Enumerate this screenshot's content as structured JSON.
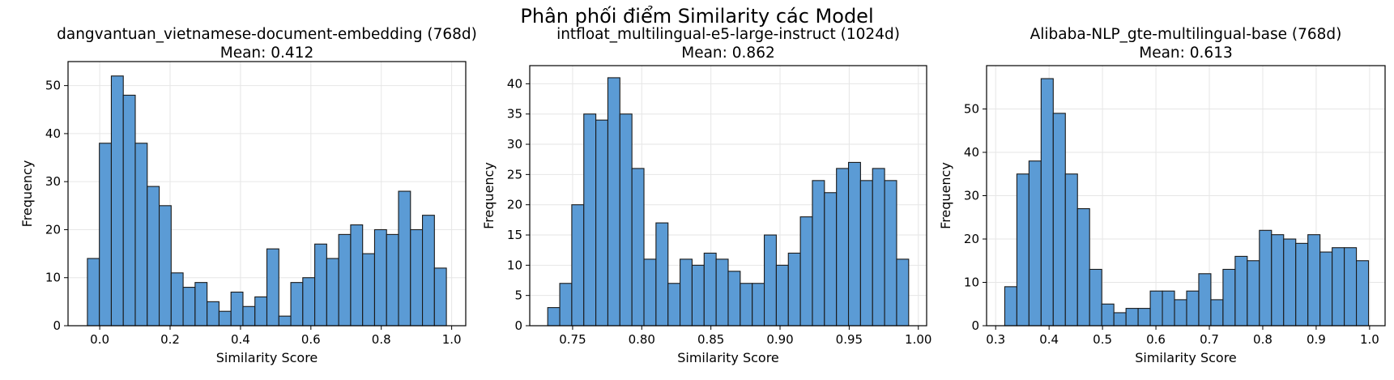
{
  "title": "Phân phối điểm Similarity các Model",
  "colors": {
    "bar_fill": "#5b9bd5",
    "bar_edge": "#1a1a1a",
    "grid": "#e6e6e6",
    "axis": "#000000"
  },
  "chart_data": [
    {
      "type": "bar",
      "title": "dangvantuan_vietnamese-document-embedding (768d)",
      "subtitle": "Mean: 0.412",
      "xlabel": "Similarity Score",
      "ylabel": "Frequency",
      "bin_start": -0.035,
      "bin_width": 0.034,
      "values": [
        14,
        38,
        52,
        48,
        38,
        29,
        25,
        11,
        8,
        9,
        5,
        3,
        7,
        4,
        6,
        16,
        2,
        9,
        10,
        17,
        14,
        19,
        21,
        15,
        20,
        19,
        28,
        20,
        23,
        12
      ],
      "xlim": [
        -0.09,
        1.04
      ],
      "ylim": [
        0,
        55
      ],
      "xticks": [
        0.0,
        0.2,
        0.4,
        0.6,
        0.8,
        1.0
      ],
      "xtick_labels": [
        "0.0",
        "0.2",
        "0.4",
        "0.6",
        "0.8",
        "1.0"
      ],
      "yticks": [
        0,
        10,
        20,
        30,
        40,
        50
      ],
      "ytick_labels": [
        "0",
        "10",
        "20",
        "30",
        "40",
        "50"
      ],
      "grid": true
    },
    {
      "type": "bar",
      "title": "intfloat_multilingual-e5-large-instruct (1024d)",
      "subtitle": "Mean: 0.862",
      "xlabel": "Similarity Score",
      "ylabel": "Frequency",
      "bin_start": 0.732,
      "bin_width": 0.0087,
      "values": [
        3,
        7,
        20,
        35,
        34,
        41,
        35,
        26,
        11,
        17,
        7,
        11,
        10,
        12,
        11,
        9,
        7,
        7,
        15,
        10,
        12,
        18,
        24,
        22,
        26,
        27,
        24,
        26,
        24,
        11
      ],
      "xlim": [
        0.719,
        1.006
      ],
      "ylim": [
        0,
        43
      ],
      "xticks": [
        0.75,
        0.8,
        0.85,
        0.9,
        0.95,
        1.0
      ],
      "xtick_labels": [
        "0.75",
        "0.80",
        "0.85",
        "0.90",
        "0.95",
        "1.00"
      ],
      "yticks": [
        0,
        5,
        10,
        15,
        20,
        25,
        30,
        35,
        40
      ],
      "ytick_labels": [
        "0",
        "5",
        "10",
        "15",
        "20",
        "25",
        "30",
        "35",
        "40"
      ],
      "grid": true
    },
    {
      "type": "bar",
      "title": "Alibaba-NLP_gte-multilingual-base (768d)",
      "subtitle": "Mean: 0.613",
      "xlabel": "Similarity Score",
      "ylabel": "Frequency",
      "bin_start": 0.317,
      "bin_width": 0.0227,
      "values": [
        9,
        35,
        38,
        57,
        49,
        35,
        27,
        13,
        5,
        3,
        4,
        4,
        8,
        8,
        6,
        8,
        12,
        6,
        13,
        16,
        15,
        22,
        21,
        20,
        19,
        21,
        17,
        18,
        18,
        15
      ],
      "xlim": [
        0.283,
        1.029
      ],
      "ylim": [
        0,
        60
      ],
      "xticks": [
        0.3,
        0.4,
        0.5,
        0.6,
        0.7,
        0.8,
        0.9,
        1.0
      ],
      "xtick_labels": [
        "0.3",
        "0.4",
        "0.5",
        "0.6",
        "0.7",
        "0.8",
        "0.9",
        "1.0"
      ],
      "yticks": [
        0,
        10,
        20,
        30,
        40,
        50
      ],
      "ytick_labels": [
        "0",
        "10",
        "20",
        "30",
        "40",
        "50"
      ],
      "grid": true
    }
  ]
}
